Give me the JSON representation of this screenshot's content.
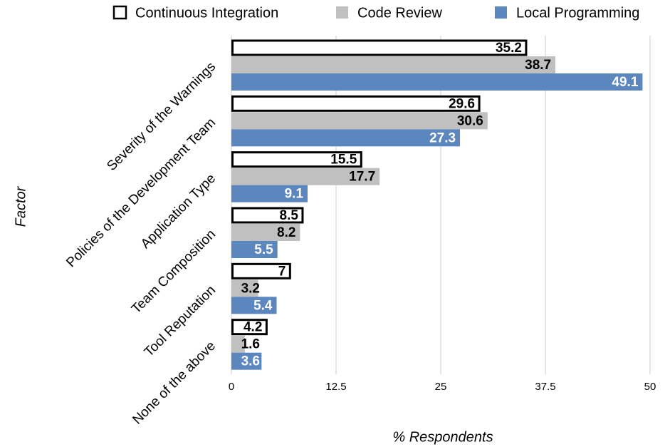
{
  "chart_data": {
    "type": "bar",
    "orientation": "horizontal",
    "categories": [
      "Severity of the Warnings",
      "Policies of the Development Team",
      "Application Type",
      "Team Composition",
      "Tool Reputation",
      "None of the above"
    ],
    "series": [
      {
        "name": "Continuous Integration",
        "color": "#ffffff",
        "values": [
          35.2,
          29.6,
          15.5,
          8.5,
          7,
          4.2
        ]
      },
      {
        "name": "Code Review",
        "color": "#c0c0c0",
        "values": [
          38.7,
          30.6,
          17.7,
          8.2,
          3.2,
          1.6
        ]
      },
      {
        "name": "Local Programming",
        "color": "#5b86be",
        "values": [
          49.1,
          27.3,
          9.1,
          5.5,
          5.4,
          3.6
        ]
      }
    ],
    "xlabel": "% Respondents",
    "ylabel": "Factor",
    "xlim": [
      0,
      50
    ],
    "xticks": [
      0,
      12.5,
      25,
      37.5,
      50
    ],
    "grid": true,
    "legend": "top"
  }
}
